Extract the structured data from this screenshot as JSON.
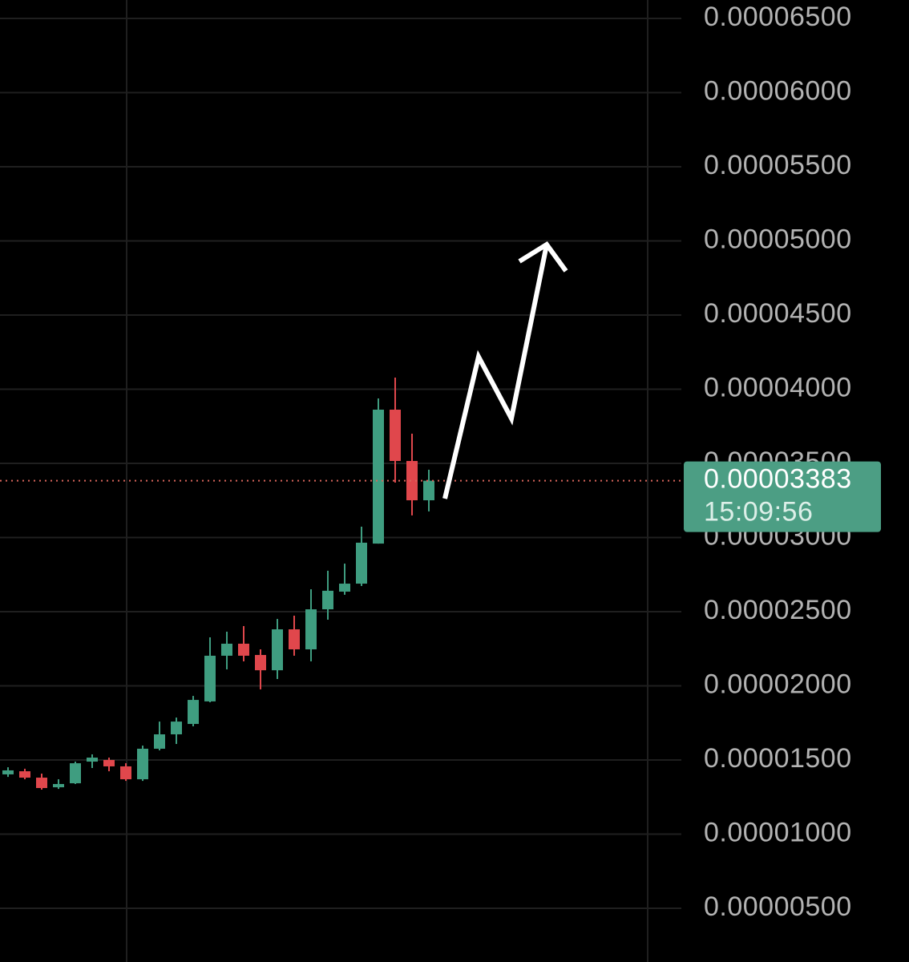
{
  "chart_data": {
    "type": "candlestick",
    "open": [
      1.403e-05,
      1.424e-05,
      1.381e-05,
      1.316e-05,
      1.343e-05,
      1.489e-05,
      1.5e-05,
      1.457e-05,
      1.37e-05,
      1.576e-05,
      1.673e-05,
      1.743e-05,
      1.895e-05,
      2.203e-05,
      2.284e-05,
      2.208e-05,
      2.105e-05,
      2.381e-05,
      2.246e-05,
      2.516e-05,
      2.635e-05,
      2.689e-05,
      2.959e-05,
      3.862e-05,
      3.516e-05,
      3.251e-05
    ],
    "high": [
      1.451e-05,
      1.441e-05,
      1.408e-05,
      1.37e-05,
      1.489e-05,
      1.538e-05,
      1.516e-05,
      1.478e-05,
      1.597e-05,
      1.759e-05,
      1.786e-05,
      1.932e-05,
      2.327e-05,
      2.365e-05,
      2.403e-05,
      2.246e-05,
      2.451e-05,
      2.473e-05,
      2.651e-05,
      2.776e-05,
      2.824e-05,
      3.073e-05,
      3.938e-05,
      4.078e-05,
      3.7e-05,
      3.457e-05
    ],
    "low": [
      1.386e-05,
      1.37e-05,
      1.3e-05,
      1.305e-05,
      1.338e-05,
      1.446e-05,
      1.424e-05,
      1.359e-05,
      1.359e-05,
      1.565e-05,
      1.608e-05,
      1.727e-05,
      1.889e-05,
      2.111e-05,
      2.165e-05,
      1.976e-05,
      2.046e-05,
      2.203e-05,
      2.165e-05,
      2.446e-05,
      2.614e-05,
      2.673e-05,
      2.959e-05,
      3.37e-05,
      3.149e-05,
      3.176e-05
    ],
    "close": [
      1.43e-05,
      1.381e-05,
      1.311e-05,
      1.338e-05,
      1.478e-05,
      1.516e-05,
      1.457e-05,
      1.37e-05,
      1.576e-05,
      1.673e-05,
      1.759e-05,
      1.905e-05,
      2.203e-05,
      2.284e-05,
      2.203e-05,
      2.105e-05,
      2.381e-05,
      2.246e-05,
      2.516e-05,
      2.641e-05,
      2.689e-05,
      2.965e-05,
      3.862e-05,
      3.516e-05,
      3.251e-05,
      3.383e-05
    ],
    "up_color": "#3f9d80",
    "down_color": "#e0474c",
    "ylim": [
      1.38e-06,
      6.624e-05
    ],
    "yticks": [
      {
        "value": 6.5e-05,
        "label": "0.00006500"
      },
      {
        "value": 6e-05,
        "label": "0.00006000"
      },
      {
        "value": 5.5e-05,
        "label": "0.00005500"
      },
      {
        "value": 5e-05,
        "label": "0.00005000"
      },
      {
        "value": 4.5e-05,
        "label": "0.00004500"
      },
      {
        "value": 4e-05,
        "label": "0.00004000"
      },
      {
        "value": 3.5e-05,
        "label": "0.00003500"
      },
      {
        "value": 3e-05,
        "label": "0.00003000"
      },
      {
        "value": 2.5e-05,
        "label": "0.00002500"
      },
      {
        "value": 2e-05,
        "label": "0.00002000"
      },
      {
        "value": 1.5e-05,
        "label": "0.00001500"
      },
      {
        "value": 1e-05,
        "label": "0.00001000"
      },
      {
        "value": 5e-06,
        "label": "0.00000500"
      }
    ],
    "grid": true,
    "current_price": {
      "value": 3.383e-05,
      "label": "0.00003383"
    },
    "countdown": "15:09:56"
  }
}
